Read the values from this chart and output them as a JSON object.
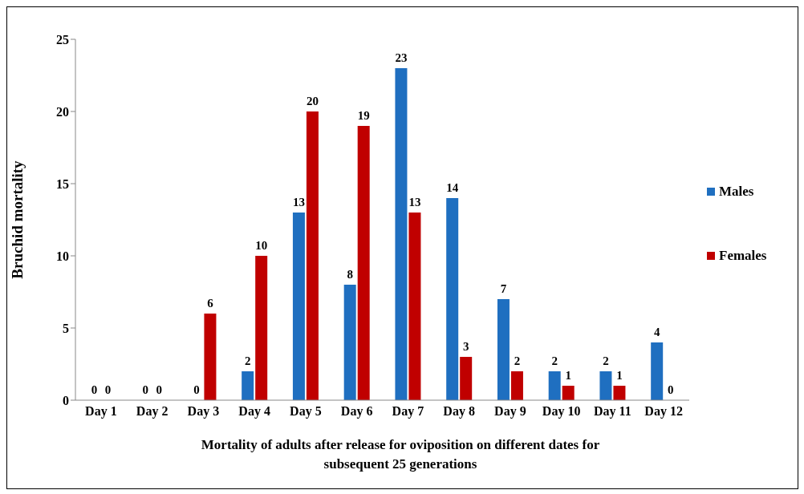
{
  "chart_data": {
    "type": "bar",
    "xlabel": "Mortality of adults after release for oviposition on different dates for subsequent 25 generations",
    "ylabel": "Bruchid mortality",
    "categories": [
      "Day 1",
      "Day 2",
      "Day 3",
      "Day 4",
      "Day 5",
      "Day 6",
      "Day 7",
      "Day 8",
      "Day 9",
      "Day 10",
      "Day 11",
      "Day 12"
    ],
    "series": [
      {
        "name": "Males",
        "color": "#1f6fc0",
        "values": [
          0,
          0,
          0,
          2,
          13,
          8,
          23,
          14,
          7,
          2,
          2,
          4
        ]
      },
      {
        "name": "Females",
        "color": "#c00000",
        "values": [
          0,
          0,
          6,
          10,
          20,
          19,
          13,
          3,
          2,
          1,
          1,
          0
        ]
      }
    ],
    "ylim": [
      0,
      25
    ],
    "yticks": [
      0,
      5,
      10,
      15,
      20,
      25
    ],
    "grid": false,
    "legend": "right",
    "data_labels": true
  }
}
